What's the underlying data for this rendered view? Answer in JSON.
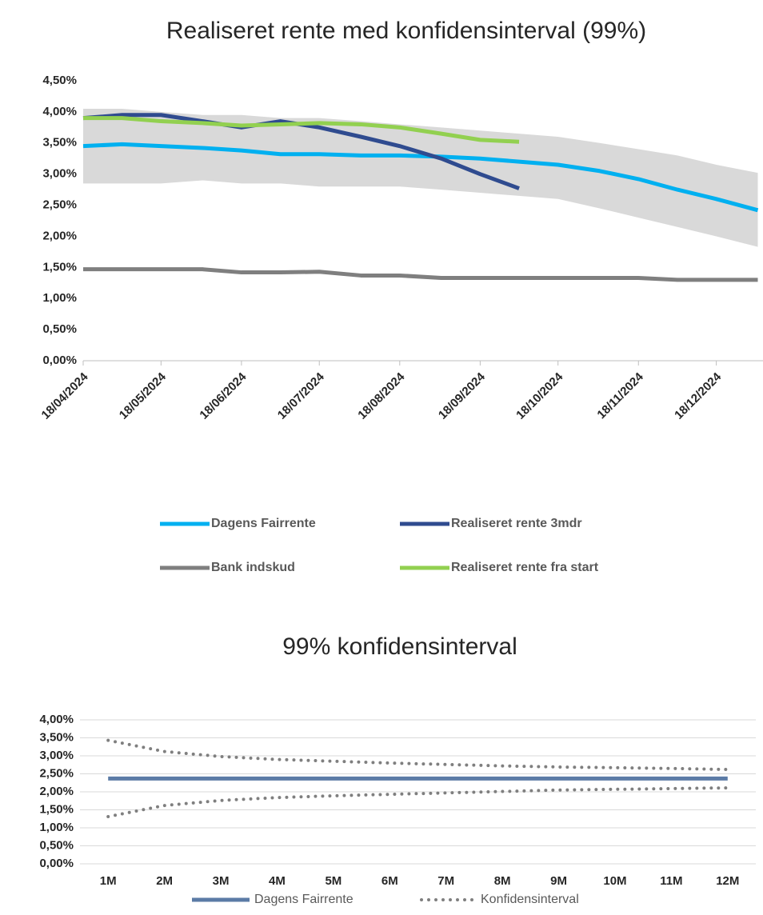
{
  "chart_data": [
    {
      "type": "line",
      "title": "Realiseret rente med konfidensinterval (99%)",
      "x": [
        "18/04/2024",
        "03/05/2024",
        "18/05/2024",
        "03/06/2024",
        "18/06/2024",
        "03/07/2024",
        "18/07/2024",
        "03/08/2024",
        "18/08/2024",
        "03/09/2024",
        "18/09/2024",
        "03/10/2024",
        "18/10/2024",
        "03/11/2024",
        "18/11/2024",
        "03/12/2024",
        "18/12/2024",
        "03/01/2025"
      ],
      "xlim": [
        "18/04/2024",
        "05/01/2025"
      ],
      "xticks": [
        "18/04/2024",
        "18/05/2024",
        "18/06/2024",
        "18/07/2024",
        "18/08/2024",
        "18/09/2024",
        "18/10/2024",
        "18/11/2024",
        "18/12/2024"
      ],
      "ylim": [
        0,
        4.5
      ],
      "yticks": [
        {
          "value": 0,
          "label": "0,00%"
        },
        {
          "value": 0.5,
          "label": "0,50%"
        },
        {
          "value": 1,
          "label": "1,00%"
        },
        {
          "value": 1.5,
          "label": "1,50%"
        },
        {
          "value": 2,
          "label": "2,00%"
        },
        {
          "value": 2.5,
          "label": "2,50%"
        },
        {
          "value": 3,
          "label": "3,00%"
        },
        {
          "value": 3.5,
          "label": "3,50%"
        },
        {
          "value": 4,
          "label": "4,00%"
        },
        {
          "value": 4.5,
          "label": "4,50%"
        }
      ],
      "band": {
        "color": "#d9d9d9",
        "upper": [
          4.05,
          4.05,
          4.0,
          3.95,
          3.95,
          3.9,
          3.9,
          3.85,
          3.8,
          3.75,
          3.7,
          3.65,
          3.6,
          3.5,
          3.4,
          3.3,
          3.15,
          3.02
        ],
        "lower": [
          2.85,
          2.85,
          2.85,
          2.9,
          2.85,
          2.85,
          2.8,
          2.8,
          2.8,
          2.75,
          2.7,
          2.65,
          2.6,
          2.45,
          2.3,
          2.15,
          2.0,
          1.83
        ]
      },
      "series": [
        {
          "name": "Dagens Fairrente",
          "color": "#00b0f0",
          "values": [
            3.45,
            3.48,
            3.45,
            3.42,
            3.38,
            3.32,
            3.32,
            3.3,
            3.3,
            3.28,
            3.25,
            3.2,
            3.15,
            3.05,
            2.92,
            2.75,
            2.6,
            2.42
          ]
        },
        {
          "name": "Realiseret rente 3mdr",
          "color": "#2f4b8f",
          "values": [
            3.9,
            3.95,
            3.95,
            3.85,
            3.75,
            3.85,
            3.75,
            3.6,
            3.45,
            3.25,
            3.0,
            2.77,
            null,
            null,
            null,
            null,
            null,
            null
          ]
        },
        {
          "name": "Bank indskud",
          "color": "#7f7f7f",
          "values": [
            1.47,
            1.47,
            1.47,
            1.47,
            1.42,
            1.42,
            1.43,
            1.37,
            1.37,
            1.33,
            1.33,
            1.33,
            1.33,
            1.33,
            1.33,
            1.3,
            1.3,
            1.3
          ]
        },
        {
          "name": "Realiseret rente fra start",
          "color": "#92d050",
          "values": [
            3.9,
            3.9,
            3.85,
            3.82,
            3.78,
            3.8,
            3.82,
            3.8,
            3.75,
            3.65,
            3.55,
            3.52,
            null,
            null,
            null,
            null,
            null,
            null
          ]
        }
      ],
      "grid": false
    },
    {
      "type": "line",
      "title": "99% konfidensinterval",
      "categories": [
        "1M",
        "2M",
        "3M",
        "4M",
        "5M",
        "6M",
        "7M",
        "8M",
        "9M",
        "10M",
        "11M",
        "12M"
      ],
      "ylim": [
        0,
        4
      ],
      "yticks": [
        {
          "value": 0,
          "label": "0,00%"
        },
        {
          "value": 0.5,
          "label": "0,50%"
        },
        {
          "value": 1,
          "label": "1,00%"
        },
        {
          "value": 1.5,
          "label": "1,50%"
        },
        {
          "value": 2,
          "label": "2,00%"
        },
        {
          "value": 2.5,
          "label": "2,50%"
        },
        {
          "value": 3,
          "label": "3,00%"
        },
        {
          "value": 3.5,
          "label": "3,50%"
        },
        {
          "value": 4,
          "label": "4,00%"
        }
      ],
      "series": [
        {
          "name": "Dagens Fairrente",
          "color": "#5b7ba6",
          "values": [
            2.37,
            2.37,
            2.37,
            2.37,
            2.37,
            2.37,
            2.37,
            2.37,
            2.37,
            2.37,
            2.37,
            2.37
          ]
        },
        {
          "name": "Konfidensinterval",
          "color": "#7f7f7f",
          "style": "dotted",
          "values": [
            3.43,
            3.12,
            2.98,
            2.9,
            2.85,
            2.8,
            2.76,
            2.72,
            2.69,
            2.67,
            2.65,
            2.62
          ],
          "values_lower": [
            1.31,
            1.62,
            1.76,
            1.84,
            1.89,
            1.93,
            1.97,
            2.01,
            2.05,
            2.07,
            2.09,
            2.11
          ]
        }
      ],
      "grid": true
    }
  ]
}
